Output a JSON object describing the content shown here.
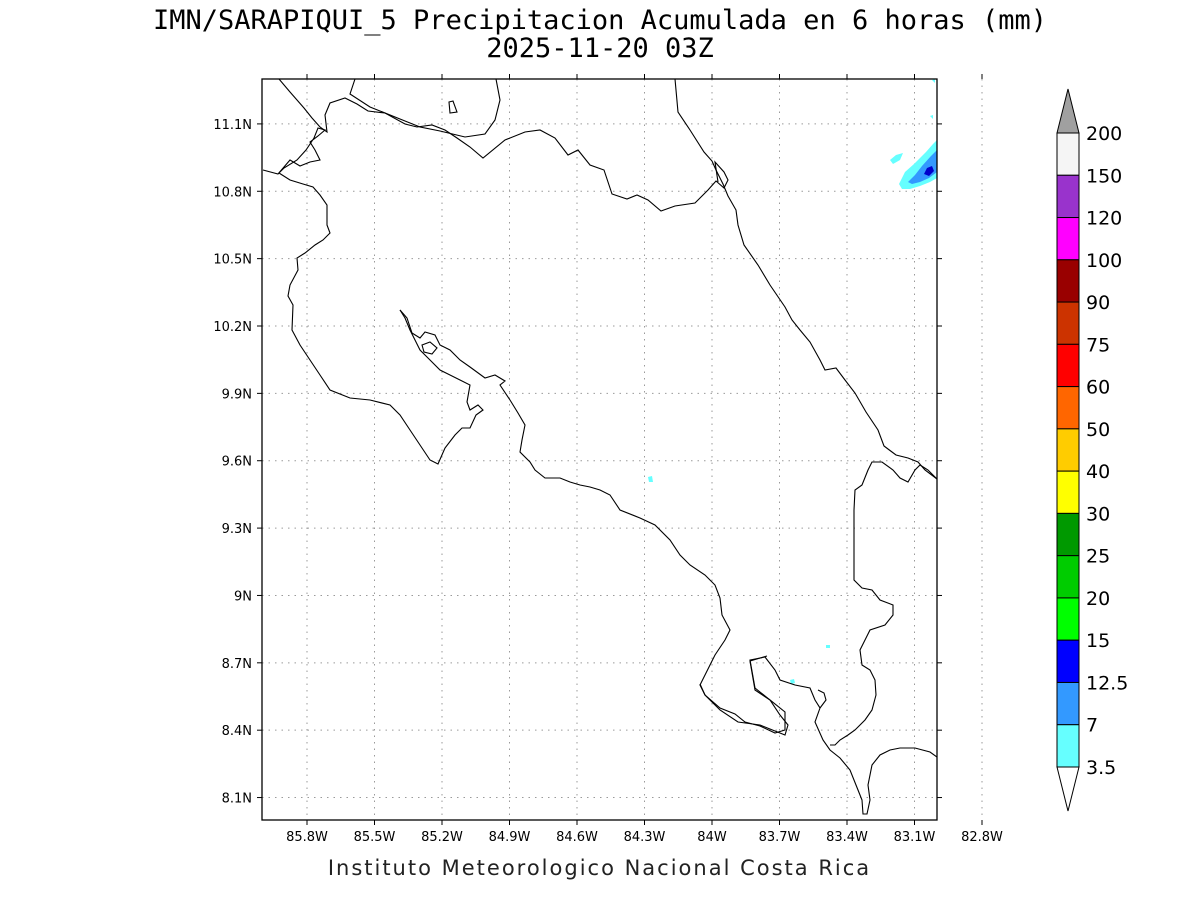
{
  "title": {
    "line1": "IMN/SARAPIQUI_5 Precipitacion Acumulada en 6 horas (mm)",
    "line2": "2025-11-20 03Z"
  },
  "map": {
    "lon_ticks": [
      "85.8W",
      "85.5W",
      "85.2W",
      "84.9W",
      "84.6W",
      "84.3W",
      "84W",
      "83.7W",
      "83.4W",
      "83.1W",
      "82.8W"
    ],
    "lat_ticks": [
      "11.1N",
      "10.8N",
      "10.5N",
      "10.2N",
      "9.9N",
      "9.6N",
      "9.3N",
      "9N",
      "8.7N",
      "8.4N",
      "8.1N"
    ],
    "lon_range_deg_west": [
      86.0,
      83.0
    ],
    "lat_range_deg_north": [
      8.0,
      11.3
    ],
    "grid": true,
    "coastline_color": "#000000"
  },
  "colorbar": {
    "labels": [
      "200",
      "150",
      "120",
      "100",
      "90",
      "75",
      "60",
      "50",
      "40",
      "30",
      "25",
      "20",
      "15",
      "12.5",
      "7",
      "3.5"
    ],
    "colors": [
      "#a0a0a0",
      "#f5f5f5",
      "#9933cc",
      "#ff00ff",
      "#990000",
      "#cc3300",
      "#ff0000",
      "#ff6600",
      "#ffcc00",
      "#ffff00",
      "#009900",
      "#00cc00",
      "#00ff00",
      "#0000ff",
      "#3399ff",
      "#66ffff",
      "#ffffff"
    ],
    "top_arrow_color": "#a0a0a0",
    "bottom_arrow_color": "#ffffff"
  },
  "footer": "Instituto Meteorologico Nacional Costa Rica"
}
